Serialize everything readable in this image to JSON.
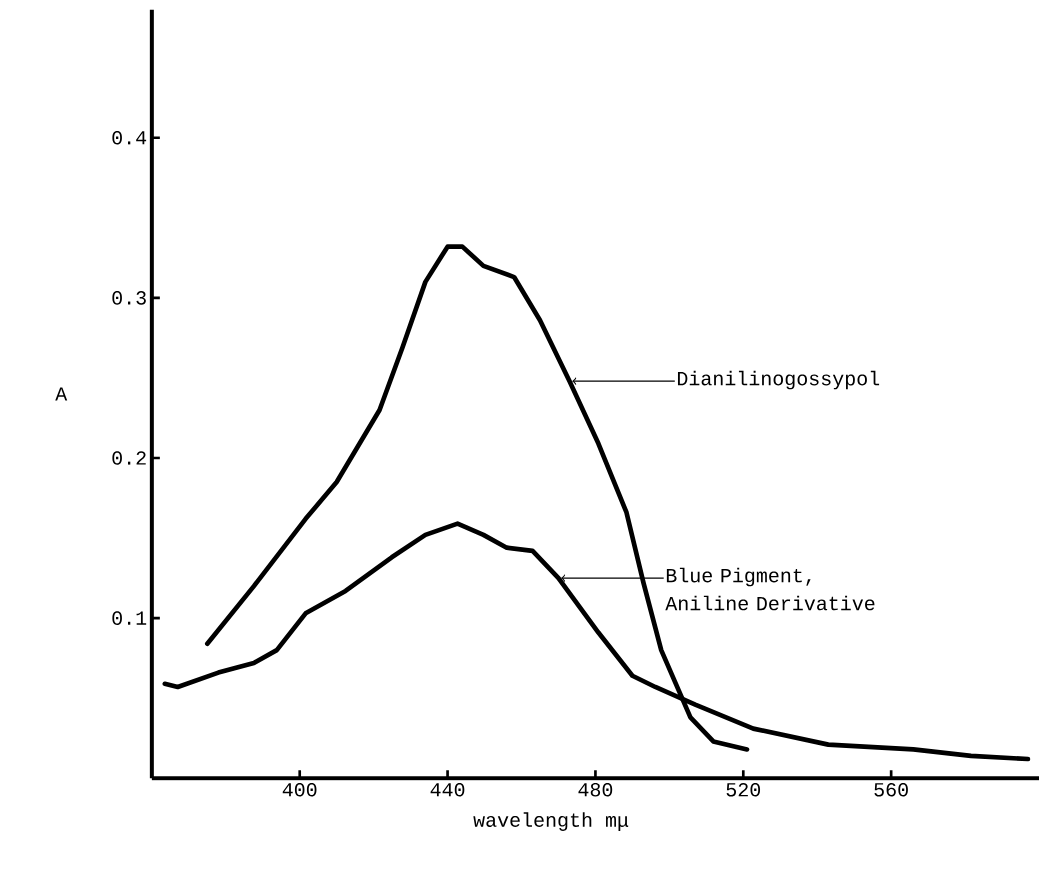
{
  "chart_data": {
    "type": "line",
    "xlabel": "wavelength mμ",
    "ylabel": "A",
    "xlim": [
      360,
      600
    ],
    "ylim": [
      0,
      0.48
    ],
    "xticks": [
      400,
      440,
      480,
      520,
      560
    ],
    "yticks": [
      0.1,
      0.2,
      0.3,
      0.4
    ],
    "grid": false,
    "marker": "none",
    "line_style": "solid",
    "series": [
      {
        "color": "#000000",
        "x": [
          375,
          387.6,
          401.6,
          410,
          421.6,
          427.8,
          434,
          440,
          444,
          449.7,
          458,
          465,
          473,
          480.8,
          488.4,
          493,
          497.8,
          505.7,
          511.9,
          521
        ],
        "values": [
          0.084,
          0.12,
          0.162,
          0.185,
          0.23,
          0.269,
          0.31,
          0.332,
          0.332,
          0.32,
          0.313,
          0.286,
          0.248,
          0.209,
          0.166,
          0.122,
          0.08,
          0.038,
          0.023,
          0.018
        ]
      },
      {
        "color": "#000000",
        "x": [
          363.5,
          367,
          378,
          387.6,
          393.8,
          401.6,
          412.4,
          424.9,
          434,
          442.7,
          449.7,
          456,
          463,
          470,
          480.8,
          490,
          496.2,
          507,
          522.7,
          543,
          566,
          581.6,
          597
        ],
        "values": [
          0.059,
          0.057,
          0.066,
          0.072,
          0.08,
          0.103,
          0.117,
          0.138,
          0.152,
          0.159,
          0.152,
          0.144,
          0.142,
          0.125,
          0.091,
          0.064,
          0.057,
          0.046,
          0.031,
          0.021,
          0.018,
          0.014,
          0.012
        ]
      }
    ],
    "annotations": [
      {
        "text": "Dianilinogossypol",
        "x": 473,
        "y": 0.248
      },
      {
        "text": "Blue Pigment, Aniline Derivative",
        "x": 470,
        "y": 0.125
      }
    ]
  }
}
